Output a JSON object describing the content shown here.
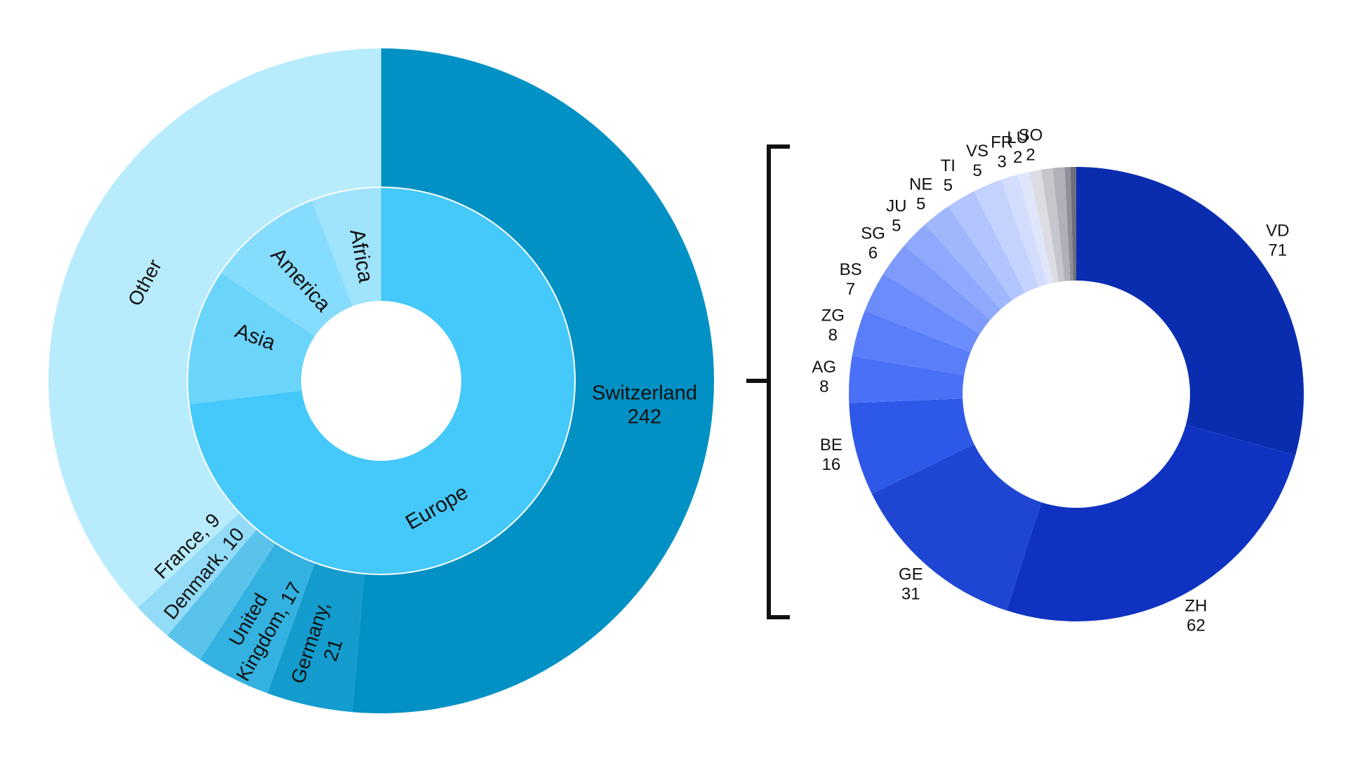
{
  "chart_data": [
    {
      "type": "sunburst",
      "title": "",
      "inner_ring": [
        {
          "name": "Europe",
          "color": "#45C8FA"
        },
        {
          "name": "Asia",
          "color": "#6BD4FB"
        },
        {
          "name": "America",
          "color": "#86DCFC"
        },
        {
          "name": "Africa",
          "color": "#9FE3FC"
        }
      ],
      "outer_ring": [
        {
          "name": "Switzerland",
          "value": 242,
          "parent": "Europe",
          "color": "#0291C4"
        },
        {
          "name": "Germany",
          "value": 21,
          "parent": "Europe",
          "color": "#139CCD"
        },
        {
          "name": "United Kingdom",
          "value": 17,
          "parent": "Europe",
          "color": "#33B1E0"
        },
        {
          "name": "Denmark",
          "value": 10,
          "parent": "Europe",
          "color": "#5AC3EC"
        },
        {
          "name": "France",
          "value": 9,
          "parent": "Europe",
          "color": "#93DCF8"
        },
        {
          "name": "Other",
          "value": null,
          "parent": "Other",
          "color": "#B8ECFD"
        }
      ],
      "labels": {
        "Switzerland": [
          "Switzerland",
          "242"
        ],
        "Germany": [
          "Germany,",
          "21"
        ],
        "United Kingdom": [
          "United",
          "Kingdom, 17"
        ],
        "Denmark": [
          "Denmark, 10"
        ],
        "France": [
          "France, 9"
        ],
        "Other": [
          "Other"
        ]
      }
    },
    {
      "type": "pie",
      "title": "",
      "categories": [
        "VD",
        "ZH",
        "GE",
        "BE",
        "AG",
        "ZG",
        "BS",
        "SG",
        "JU",
        "NE",
        "TI",
        "VS",
        "FR",
        "LU",
        "SO",
        "",
        "",
        "",
        ""
      ],
      "values": [
        71,
        62,
        31,
        16,
        8,
        8,
        7,
        6,
        5,
        5,
        5,
        5,
        3,
        2,
        2,
        2,
        2,
        1,
        1
      ],
      "colors": [
        "#0A2DB0",
        "#0F33C0",
        "#1F46D3",
        "#2E58E8",
        "#4A70F7",
        "#5A7EFA",
        "#6B8CFB",
        "#7E9BFC",
        "#8FA9FC",
        "#A0B7FD",
        "#B3C5FE",
        "#C4D2FE",
        "#D3DDFE",
        "#E0E6FA",
        "#DCDCE2",
        "#C6C7CE",
        "#AFB0B8",
        "#8E8F99",
        "#6E6F7A"
      ]
    }
  ]
}
